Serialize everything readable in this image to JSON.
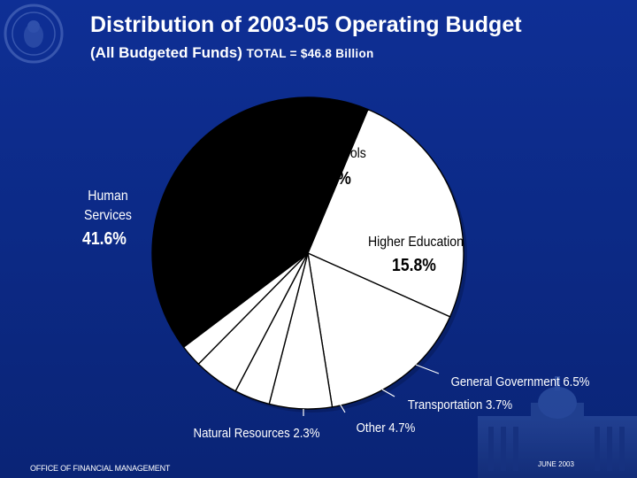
{
  "header": {
    "title": "Distribution of  2003-05 Operating Budget",
    "subtitle": "(All Budgeted Funds)",
    "total": "TOTAL = $46.8 Billion"
  },
  "footer": {
    "left": "OFFICE OF FINANCIAL MANAGEMENT",
    "right": "JUNE 2003"
  },
  "colors": {
    "background": "#0b2a8a",
    "pie_fill": "#ffffff",
    "human_services": "#000000"
  },
  "chart_data": {
    "type": "pie",
    "title": "Distribution of  2003-05 Operating Budget",
    "slices": [
      {
        "name": "K-12 Schools",
        "value": 25.4,
        "display": "25.4%"
      },
      {
        "name": "Higher Education",
        "value": 15.8,
        "display": "15.8%"
      },
      {
        "name": "General Government",
        "value": 6.5,
        "display": "6.5%"
      },
      {
        "name": "Transportation",
        "value": 3.7,
        "display": "3.7%"
      },
      {
        "name": "Other",
        "value": 4.7,
        "display": "4.7%"
      },
      {
        "name": "Natural Resources",
        "value": 2.3,
        "display": "2.3%"
      },
      {
        "name": "Human Services",
        "value": 41.6,
        "display": "41.6%",
        "name_lines": [
          "Human",
          "Services"
        ]
      }
    ]
  }
}
